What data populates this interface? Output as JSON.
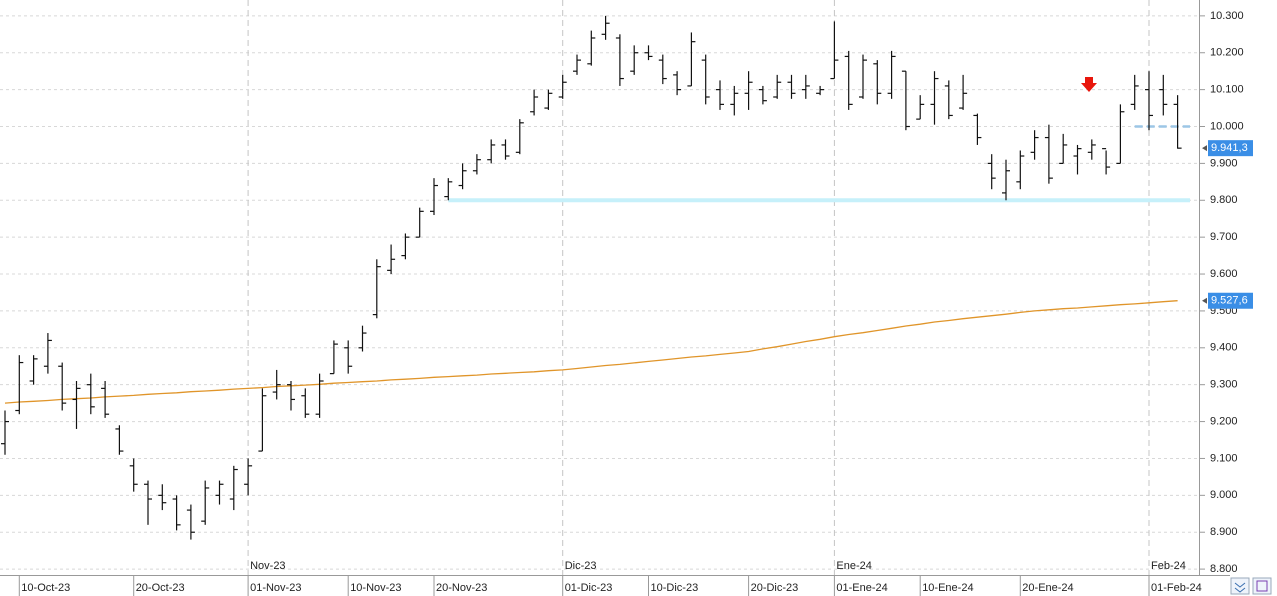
{
  "chart_data": {
    "type": "ohlc",
    "categories": [
      null,
      "10-Oct-23",
      null,
      null,
      null,
      null,
      null,
      null,
      null,
      "20-Oct-23",
      null,
      null,
      null,
      null,
      null,
      null,
      null,
      "01-Nov-23",
      null,
      null,
      null,
      null,
      null,
      null,
      "10-Nov-23",
      null,
      null,
      null,
      null,
      null,
      "20-Nov-23",
      null,
      null,
      null,
      null,
      null,
      null,
      null,
      null,
      "01-Dic-23",
      null,
      null,
      null,
      null,
      null,
      "10-Dic-23",
      null,
      null,
      null,
      null,
      null,
      null,
      "20-Dic-23",
      null,
      null,
      null,
      null,
      null,
      "01-Ene-24",
      null,
      null,
      null,
      null,
      null,
      "10-Ene-24",
      null,
      null,
      null,
      null,
      null,
      null,
      "20-Ene-24",
      null,
      null,
      null,
      null,
      null,
      null,
      null,
      null,
      "01-Feb-24",
      null,
      null
    ],
    "months": [
      null,
      null,
      null,
      null,
      null,
      null,
      null,
      null,
      null,
      null,
      null,
      null,
      null,
      null,
      null,
      null,
      null,
      "Nov-23",
      null,
      null,
      null,
      null,
      null,
      null,
      null,
      null,
      null,
      null,
      null,
      null,
      null,
      null,
      null,
      null,
      null,
      null,
      null,
      null,
      null,
      "Dic-23",
      null,
      null,
      null,
      null,
      null,
      null,
      null,
      null,
      null,
      null,
      null,
      null,
      null,
      null,
      null,
      null,
      null,
      null,
      "Ene-24",
      null,
      null,
      null,
      null,
      null,
      null,
      null,
      null,
      null,
      null,
      null,
      null,
      null,
      null,
      null,
      null,
      null,
      null,
      null,
      null,
      null,
      "Feb-24",
      null,
      null
    ],
    "open": [
      9140,
      9230,
      9310,
      9350,
      9350,
      9260,
      9300,
      9290,
      9180,
      9080,
      9030,
      9000,
      8990,
      8960,
      8930,
      9000,
      8990,
      9030,
      9120,
      9280,
      9300,
      9270,
      9220,
      9330,
      9400,
      9400,
      9490,
      9610,
      9650,
      9700,
      9770,
      9810,
      9840,
      9880,
      9910,
      9950,
      9930,
      10040,
      10050,
      10080,
      10150,
      10170,
      10250,
      10240,
      10150,
      10200,
      10180,
      10140,
      10110,
      10180,
      10100,
      10060,
      10090,
      10100,
      10080,
      10120,
      10100,
      10090,
      10130,
      10190,
      10080,
      10170,
      10090,
      10150,
      10020,
      10060,
      10110,
      10050,
      10030,
      9900,
      9820,
      9850,
      9930,
      9970,
      9900,
      9920,
      9930,
      9940,
      9900,
      10060,
      10100,
      10100,
      10060
    ],
    "high": [
      9230,
      9380,
      9380,
      9440,
      9360,
      9310,
      9330,
      9310,
      9190,
      9100,
      9040,
      9030,
      9000,
      8975,
      9040,
      9040,
      9080,
      9100,
      9290,
      9340,
      9310,
      9290,
      9330,
      9420,
      9420,
      9460,
      9640,
      9680,
      9710,
      9780,
      9860,
      9860,
      9900,
      9925,
      9965,
      9965,
      10020,
      10100,
      10100,
      10140,
      10195,
      10260,
      10300,
      10250,
      10220,
      10220,
      10195,
      10150,
      10255,
      10195,
      10125,
      10110,
      10150,
      10110,
      10140,
      10140,
      10140,
      10110,
      10285,
      10205,
      10195,
      10180,
      10205,
      10150,
      10085,
      10150,
      10125,
      10140,
      10035,
      9925,
      9910,
      9935,
      9990,
      10005,
      9980,
      9950,
      9965,
      9935,
      10060,
      10140,
      10150,
      10140,
      10085
    ],
    "low": [
      9110,
      9220,
      9300,
      9330,
      9230,
      9180,
      9220,
      9210,
      9110,
      9010,
      8920,
      8960,
      8905,
      8880,
      8920,
      8975,
      8960,
      9000,
      9120,
      9260,
      9230,
      9210,
      9210,
      9330,
      9330,
      9390,
      9480,
      9600,
      9640,
      9700,
      9760,
      9800,
      9830,
      9870,
      9900,
      9910,
      9925,
      10030,
      10045,
      10075,
      10140,
      10165,
      10235,
      10110,
      10140,
      10180,
      10115,
      10085,
      10110,
      10060,
      10045,
      10030,
      10045,
      10060,
      10075,
      10075,
      10075,
      10085,
      10130,
      10045,
      10075,
      10060,
      10075,
      9990,
      10020,
      10005,
      10020,
      10045,
      9950,
      9830,
      9800,
      9830,
      9910,
      9845,
      9900,
      9870,
      9910,
      9870,
      9900,
      10045,
      9990,
      10030,
      9940
    ],
    "close": [
      9200,
      9360,
      9370,
      9420,
      9250,
      9290,
      9240,
      9220,
      9120,
      9030,
      8990,
      8980,
      8920,
      8900,
      9020,
      9030,
      9070,
      9080,
      9270,
      9300,
      9260,
      9220,
      9310,
      9410,
      9350,
      9440,
      9620,
      9640,
      9700,
      9770,
      9840,
      9850,
      9880,
      9910,
      9950,
      9920,
      10010,
      10080,
      10090,
      10120,
      10180,
      10240,
      10280,
      10130,
      10200,
      10190,
      10130,
      10100,
      10230,
      10080,
      10060,
      10090,
      10120,
      10070,
      10120,
      10090,
      10110,
      10100,
      10180,
      10060,
      10180,
      10090,
      10190,
      10000,
      10060,
      10130,
      10030,
      10090,
      9970,
      9860,
      9880,
      9920,
      9970,
      9860,
      9950,
      9940,
      9950,
      9890,
      10040,
      10110,
      10030,
      10060,
      9941.3
    ],
    "moving_average": {
      "color": "#e0952a",
      "values": [
        9250,
        9253,
        9255,
        9257,
        9260,
        9262,
        9264,
        9267,
        9269,
        9271,
        9274,
        9276,
        9278,
        9281,
        9283,
        9285,
        9288,
        9290,
        9292,
        9295,
        9297,
        9299,
        9301,
        9304,
        9306,
        9308,
        9310,
        9313,
        9315,
        9317,
        9320,
        9322,
        9324,
        9326,
        9329,
        9331,
        9333,
        9335,
        9338,
        9340,
        9344,
        9348,
        9352,
        9355,
        9359,
        9363,
        9367,
        9371,
        9375,
        9378,
        9382,
        9386,
        9390,
        9397,
        9403,
        9410,
        9417,
        9423,
        9430,
        9436,
        9441,
        9447,
        9453,
        9459,
        9464,
        9470,
        9474,
        9479,
        9483,
        9487,
        9491,
        9496,
        9500,
        9503,
        9506,
        9508,
        9511,
        9514,
        9517,
        9519,
        9522,
        9525,
        9527.6
      ]
    },
    "bar_color": "#111111",
    "support": {
      "value": 9800,
      "color": "#c6f0fa"
    },
    "resistance": {
      "value": 10000,
      "color": "#9cc6e6"
    },
    "last_price": {
      "value": 9941.3,
      "label": "9.941,3"
    },
    "ma_last": {
      "value": 9527.6,
      "label": "9.527,6"
    },
    "ylim": [
      8784,
      10343
    ],
    "yticks": [
      {
        "value": 8800,
        "label": "8.800"
      },
      {
        "value": 8900,
        "label": "8.900"
      },
      {
        "value": 9000,
        "label": "9.000"
      },
      {
        "value": 9100,
        "label": "9.100"
      },
      {
        "value": 9200,
        "label": "9.200"
      },
      {
        "value": 9300,
        "label": "9.300"
      },
      {
        "value": 9400,
        "label": "9.400"
      },
      {
        "value": 9500,
        "label": "9.500"
      },
      {
        "value": 9600,
        "label": "9.600"
      },
      {
        "value": 9700,
        "label": "9.700"
      },
      {
        "value": 9800,
        "label": "9.800"
      },
      {
        "value": 9900,
        "label": "9.900"
      },
      {
        "value": 10000,
        "label": "10.000"
      },
      {
        "value": 10100,
        "label": "10.100"
      },
      {
        "value": 10200,
        "label": "10.200"
      },
      {
        "value": 10300,
        "label": "10.300"
      }
    ],
    "grid": true
  }
}
